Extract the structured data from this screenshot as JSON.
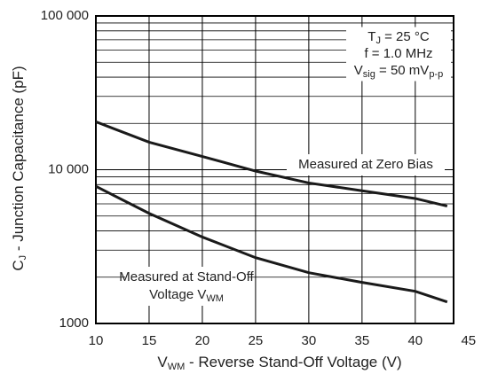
{
  "chart_data": {
    "type": "line",
    "log_y": true,
    "grid": true,
    "minor_grid": true,
    "ylabel": [
      "C",
      "J",
      " - Junction Capacitance (pF)"
    ],
    "xlabel": [
      "V",
      "WM",
      " - Reverse Stand-Off Voltage (V)"
    ],
    "conditions": [
      [
        "T",
        "J",
        " = 25 °C"
      ],
      [
        "f = 1.0 MHz"
      ],
      [
        "V",
        "sig",
        " = 50 mV",
        "p-p"
      ]
    ],
    "x": [
      10,
      15,
      20,
      25,
      30,
      35,
      40,
      43
    ],
    "series": [
      {
        "label_lines": [
          [
            "Measured at Zero Bias"
          ]
        ],
        "color": "#1a1a1a",
        "values": [
          20500,
          15100,
          12200,
          9800,
          8200,
          7300,
          6500,
          5800
        ]
      },
      {
        "label_lines": [
          [
            "Measured at Stand-Off"
          ],
          [
            "Voltage V",
            "WM"
          ]
        ],
        "color": "#1a1a1a",
        "values": [
          7800,
          5200,
          3650,
          2680,
          2140,
          1850,
          1620,
          1380
        ]
      }
    ],
    "xlim": [
      10,
      43.6
    ],
    "xticks": [
      10,
      15,
      20,
      25,
      30,
      35,
      40,
      45
    ],
    "ylim": [
      1000,
      100000
    ],
    "yticks": [
      1000,
      {
        "value": 10000,
        "label": "10 000"
      },
      {
        "value": 100000,
        "label": "100 000"
      }
    ]
  }
}
